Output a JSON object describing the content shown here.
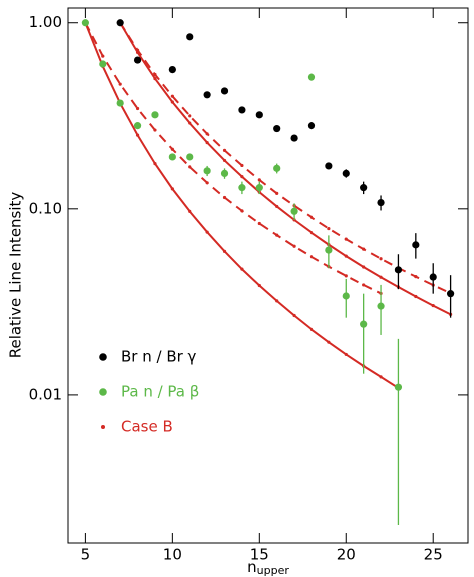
{
  "chart_data": {
    "type": "scatter",
    "y_label": "Relative Line Intensity",
    "x_label": "n",
    "x_label_sub": "upper",
    "xlim": [
      4,
      27
    ],
    "xticks": [
      5,
      10,
      15,
      20,
      25
    ],
    "ylim": [
      0.0016,
      1.2
    ],
    "yticks": [
      {
        "value": 1.0,
        "label": "1.00"
      },
      {
        "value": 0.1,
        "label": "0.10"
      },
      {
        "value": 0.01,
        "label": "0.01"
      }
    ],
    "log_y": true,
    "legend": "lower left",
    "series": [
      {
        "name": "Br n / Br γ",
        "color": "#000000",
        "x": [
          7,
          8,
          10,
          11,
          12,
          13,
          14,
          15,
          16,
          17,
          18,
          19,
          20,
          21,
          22,
          23,
          24,
          25,
          26
        ],
        "values": [
          1.0,
          0.63,
          0.56,
          0.84,
          0.41,
          0.43,
          0.34,
          0.32,
          0.27,
          0.24,
          0.28,
          0.17,
          0.155,
          0.13,
          0.108,
          0.047,
          0.064,
          0.043,
          0.035
        ],
        "errors": [
          null,
          null,
          null,
          null,
          null,
          null,
          null,
          null,
          null,
          null,
          null,
          null,
          0.008,
          0.01,
          0.01,
          0.01,
          0.01,
          0.008,
          0.009
        ]
      },
      {
        "name": "Pa n / Pa β",
        "color": "#5cb848",
        "x": [
          5,
          6,
          7,
          8,
          9,
          10,
          11,
          12,
          13,
          14,
          15,
          16,
          17,
          18,
          19,
          20,
          21,
          22,
          23
        ],
        "values": [
          1.0,
          0.6,
          0.37,
          0.28,
          0.32,
          0.19,
          0.19,
          0.16,
          0.155,
          0.13,
          0.13,
          0.165,
          0.097,
          0.51,
          0.06,
          0.034,
          0.024,
          0.03,
          0.011
        ],
        "errors": [
          null,
          null,
          null,
          null,
          null,
          null,
          null,
          0.01,
          0.01,
          0.01,
          0.01,
          0.01,
          0.01,
          null,
          0.012,
          0.008,
          0.011,
          0.009,
          0.009
        ]
      }
    ],
    "model": {
      "name": "Case B",
      "color": "#d42a24",
      "curves": [
        {
          "dashed": false,
          "x": [
            7,
            8,
            9,
            10,
            11,
            12,
            13,
            14,
            15,
            16,
            17,
            18,
            19,
            20,
            21,
            22,
            23,
            24,
            25,
            26
          ],
          "values": [
            1.0,
            0.693,
            0.501,
            0.375,
            0.289,
            0.227,
            0.182,
            0.149,
            0.123,
            0.103,
            0.0872,
            0.0745,
            0.0642,
            0.0557,
            0.0487,
            0.0429,
            0.038,
            0.0338,
            0.0302,
            0.0271
          ]
        },
        {
          "dashed": true,
          "x": [
            7,
            8,
            9,
            10,
            11,
            12,
            13,
            14,
            15,
            16,
            17,
            18,
            19,
            20,
            21,
            22,
            23,
            24,
            25,
            26
          ],
          "values": [
            1.0,
            0.712,
            0.527,
            0.403,
            0.316,
            0.253,
            0.206,
            0.171,
            0.143,
            0.121,
            0.104,
            0.0901,
            0.0783,
            0.0687,
            0.0607,
            0.0539,
            0.0481,
            0.0432,
            0.0389,
            0.0352
          ]
        },
        {
          "dashed": false,
          "x": [
            5,
            6,
            7,
            8,
            9,
            10,
            11,
            12,
            13,
            14,
            15,
            16,
            17,
            18,
            19,
            20,
            21,
            22,
            23
          ],
          "values": [
            1.0,
            0.583,
            0.369,
            0.249,
            0.175,
            0.128,
            0.0969,
            0.075,
            0.0591,
            0.0474,
            0.0387,
            0.032,
            0.0267,
            0.0225,
            0.0192,
            0.0165,
            0.0143,
            0.0125,
            0.0109
          ]
        },
        {
          "dashed": true,
          "x": [
            5,
            6,
            7,
            8,
            9,
            10,
            11,
            12,
            13,
            14,
            15,
            16,
            17,
            18,
            19,
            20,
            21,
            22
          ],
          "values": [
            1.0,
            0.662,
            0.468,
            0.346,
            0.265,
            0.209,
            0.168,
            0.138,
            0.115,
            0.0975,
            0.0834,
            0.0722,
            0.0629,
            0.0553,
            0.0489,
            0.0436,
            0.039,
            0.0351
          ]
        }
      ]
    }
  }
}
